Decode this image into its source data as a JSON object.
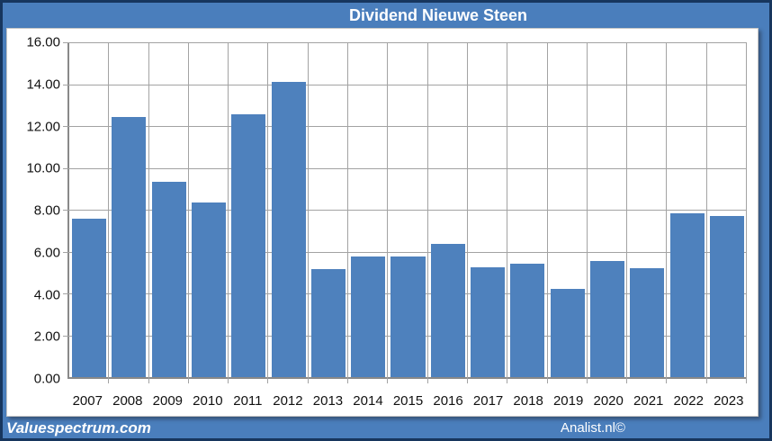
{
  "page": {
    "title": "Dividend Nieuwe Steen",
    "footer_left": "Valuespectrum.com",
    "footer_right": "Analist.nl©"
  },
  "colors": {
    "page_bg": "#4a7ebc",
    "page_border": "#17365d",
    "panel_bg": "#ffffff",
    "panel_border": "#c6c6c6",
    "bar_fill": "#4e81bd",
    "grid_color": "#a3a3a3",
    "axis_color": "#898989",
    "title_color": "#ffffff",
    "label_color": "#111111"
  },
  "chart_data": {
    "type": "bar",
    "title": "Dividend Nieuwe Steen",
    "categories": [
      "2007",
      "2008",
      "2009",
      "2010",
      "2011",
      "2012",
      "2013",
      "2014",
      "2015",
      "2016",
      "2017",
      "2018",
      "2019",
      "2020",
      "2021",
      "2022",
      "2023"
    ],
    "values": [
      7.55,
      12.45,
      9.35,
      8.35,
      12.55,
      14.1,
      5.15,
      5.75,
      5.75,
      6.35,
      5.25,
      5.4,
      4.2,
      5.55,
      5.2,
      7.85,
      7.7
    ],
    "xlabel": "",
    "ylabel": "",
    "ylim": [
      0,
      16
    ],
    "y_tick_step": 2,
    "y_tick_labels": [
      "16.00",
      "14.00",
      "12.00",
      "10.00",
      "8.00",
      "6.00",
      "4.00",
      "2.00",
      "0.00"
    ],
    "grid": true,
    "legend_position": "none",
    "series_name": "Dividend"
  }
}
